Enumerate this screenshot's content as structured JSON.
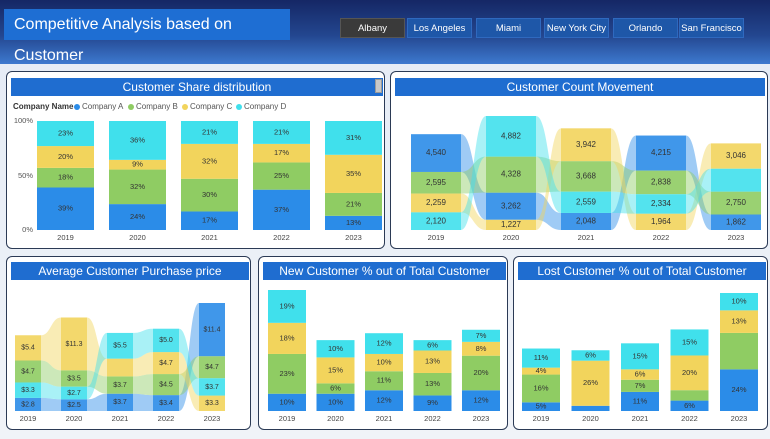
{
  "header": {
    "title": "Competitive Analysis based on Customer"
  },
  "slicers": [
    "Albany",
    "Los Angeles",
    "Miami",
    "New York City",
    "Orlando",
    "San Francisco"
  ],
  "selected_city": "Albany",
  "colors": {
    "A": "#2b8ce8",
    "B": "#8fcc63",
    "C": "#f2d45c",
    "D": "#40e0ec"
  },
  "panels": {
    "share": "Customer Share distribution",
    "count": "Customer Count Movement",
    "price": "Average Customer Purchase price",
    "newpct": "New Customer % out of Total Customer",
    "lostpct": "Lost Customer % out of Total Customer"
  },
  "legend": {
    "title": "Company Name",
    "items": [
      "Company A",
      "Company B",
      "Company C",
      "Company D"
    ]
  },
  "chart_data": [
    {
      "type": "bar",
      "title": "Customer Share distribution",
      "stacked": true,
      "normalized": true,
      "categories": [
        "2019",
        "2020",
        "2021",
        "2022",
        "2023"
      ],
      "y_ticks": [
        "100%",
        "50%",
        "0%"
      ],
      "series": [
        {
          "name": "Company A",
          "values": [
            39,
            24,
            17,
            37,
            13
          ],
          "labels": [
            "39%",
            "24%",
            "17%",
            "37%",
            "13%"
          ]
        },
        {
          "name": "Company B",
          "values": [
            18,
            32,
            30,
            25,
            21
          ],
          "labels": [
            "18%",
            "32%",
            "30%",
            "25%",
            "21%"
          ]
        },
        {
          "name": "Company C",
          "values": [
            20,
            9,
            32,
            17,
            35
          ],
          "labels": [
            "20%",
            "9%",
            "32%",
            "17%",
            "35%"
          ]
        },
        {
          "name": "Company D",
          "values": [
            23,
            36,
            21,
            21,
            31
          ],
          "labels": [
            "23%",
            "36%",
            "21%",
            "21%",
            "31%"
          ]
        }
      ]
    },
    {
      "type": "bar",
      "title": "Customer Count Movement",
      "ribbon": true,
      "categories": [
        "2019",
        "2020",
        "2021",
        "2022",
        "2023"
      ],
      "series": [
        {
          "name": "Company A",
          "values": [
            4540,
            3262,
            2048,
            4215,
            1862
          ],
          "labels": [
            "4,540",
            "3,262",
            "2,048",
            "4,215",
            "1,862"
          ]
        },
        {
          "name": "Company B",
          "values": [
            2595,
            4328,
            3668,
            2838,
            2750
          ],
          "labels": [
            "2,595",
            "4,328",
            "3,668",
            "2,838",
            "2,750"
          ]
        },
        {
          "name": "Company C",
          "values": [
            2259,
            1227,
            3942,
            1964,
            3046
          ],
          "labels": [
            "2,259",
            "1,227",
            "3,942",
            "1,964",
            "3,046"
          ]
        },
        {
          "name": "Company D",
          "values": [
            2120,
            4882,
            2559,
            2334,
            2750
          ],
          "labels": [
            "2,120",
            "4,882",
            "2,559",
            "2,334",
            ""
          ]
        }
      ]
    },
    {
      "type": "bar",
      "title": "Average Customer Purchase price",
      "ribbon": true,
      "categories": [
        "2019",
        "2020",
        "2021",
        "2022",
        "2023"
      ],
      "series": [
        {
          "name": "Company A",
          "values": [
            2.8,
            2.5,
            3.7,
            3.4,
            11.4
          ],
          "labels": [
            "$2.8",
            "$2.5",
            "$3.7",
            "$3.4",
            "$11.4"
          ]
        },
        {
          "name": "Company B",
          "values": [
            4.7,
            3.5,
            3.7,
            4.5,
            4.7
          ],
          "labels": [
            "$4.7",
            "$3.5",
            "$3.7",
            "$4.5",
            "$4.7"
          ]
        },
        {
          "name": "Company C",
          "values": [
            5.4,
            11.3,
            3.8,
            4.7,
            3.3
          ],
          "labels": [
            "$5.4",
            "$11.3",
            "",
            "$4.7",
            "$3.3"
          ]
        },
        {
          "name": "Company D",
          "values": [
            3.3,
            2.7,
            5.5,
            5.0,
            3.7
          ],
          "labels": [
            "$3.3",
            "$2.7",
            "$5.5",
            "$5.0",
            "$3.7"
          ]
        }
      ]
    },
    {
      "type": "bar",
      "title": "New Customer % out of Total Customer",
      "stacked": true,
      "categories": [
        "2019",
        "2020",
        "2021",
        "2022",
        "2023"
      ],
      "series": [
        {
          "name": "Company A",
          "values": [
            10,
            10,
            12,
            9,
            12
          ],
          "labels": [
            "10%",
            "10%",
            "12%",
            "9%",
            "12%"
          ]
        },
        {
          "name": "Company B",
          "values": [
            23,
            6,
            11,
            13,
            20
          ],
          "labels": [
            "23%",
            "6%",
            "11%",
            "13%",
            "20%"
          ]
        },
        {
          "name": "Company C",
          "values": [
            18,
            15,
            10,
            13,
            8
          ],
          "labels": [
            "18%",
            "15%",
            "10%",
            "13%",
            "8%"
          ]
        },
        {
          "name": "Company D",
          "values": [
            19,
            10,
            12,
            6,
            7
          ],
          "labels": [
            "19%",
            "10%",
            "12%",
            "6%",
            "7%"
          ]
        }
      ]
    },
    {
      "type": "bar",
      "title": "Lost Customer % out of Total Customer",
      "stacked": true,
      "categories": [
        "2019",
        "2020",
        "2021",
        "2022",
        "2023"
      ],
      "series": [
        {
          "name": "Company A",
          "values": [
            5,
            3,
            11,
            6,
            24
          ],
          "labels": [
            "5%",
            "",
            "11%",
            "6%",
            "24%"
          ]
        },
        {
          "name": "Company B",
          "values": [
            16,
            0,
            7,
            6,
            21
          ],
          "labels": [
            "16%",
            "",
            "7%",
            "",
            ""
          ]
        },
        {
          "name": "Company C",
          "values": [
            4,
            26,
            6,
            20,
            13
          ],
          "labels": [
            "4%",
            "26%",
            "6%",
            "20%",
            "13%"
          ]
        },
        {
          "name": "Company D",
          "values": [
            11,
            6,
            15,
            15,
            10
          ],
          "labels": [
            "11%",
            "6%",
            "15%",
            "15%",
            "10%"
          ]
        }
      ]
    }
  ]
}
